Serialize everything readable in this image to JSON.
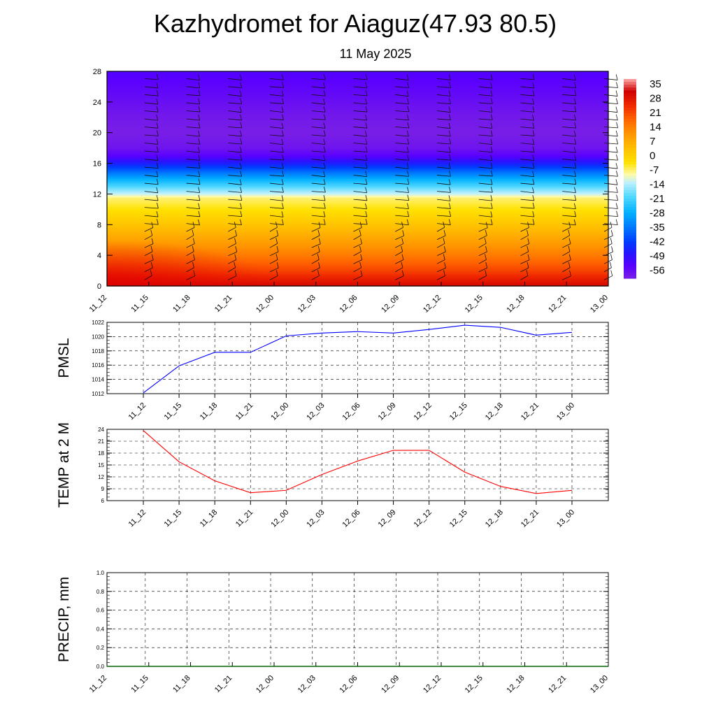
{
  "title": "Kazhydromet for Aiaguz(47.93 80.5)",
  "subtitle": "11 May 2025",
  "time_labels": [
    "11_12",
    "11_15",
    "11_18",
    "11_21",
    "12_00",
    "12_03",
    "12_06",
    "12_09",
    "12_12",
    "12_15",
    "12_18",
    "12_21",
    "13_00"
  ],
  "colorbar": {
    "labels": [
      "35",
      "28",
      "21",
      "14",
      "7",
      "0",
      "-7",
      "-14",
      "-21",
      "-28",
      "-35",
      "-42",
      "-49",
      "-56"
    ]
  },
  "chart_data": [
    {
      "type": "heatmap",
      "name": "cross-section",
      "xlabel": "",
      "ylabel": "",
      "y_ticks": [
        "0",
        "4",
        "8",
        "12",
        "16",
        "20",
        "24",
        "28"
      ],
      "ylim": [
        0,
        28
      ],
      "x_categories": [
        "11_12",
        "11_15",
        "11_18",
        "11_21",
        "12_00",
        "12_03",
        "12_06",
        "12_09",
        "12_12",
        "12_15",
        "12_18",
        "12_21",
        "13_00"
      ],
      "z_levels_km": [
        0,
        2,
        4,
        6,
        8,
        10,
        11.5,
        12,
        14,
        16,
        17,
        18,
        20,
        22,
        24,
        26,
        28
      ],
      "temperature_profile": [
        29,
        20,
        13,
        7,
        1,
        -5,
        -9,
        -14,
        -30,
        -48,
        -56,
        -60,
        -62,
        -61,
        -59,
        -57,
        -55
      ],
      "color_scale": "temperature",
      "wind_barbs": "shown"
    },
    {
      "type": "line",
      "ylabel": "PMSL",
      "categories": [
        "11_12",
        "11_15",
        "11_18",
        "11_21",
        "12_00",
        "12_03",
        "12_06",
        "12_09",
        "12_12",
        "12_15",
        "12_18",
        "12_21",
        "13_00"
      ],
      "y_ticks": [
        "1012",
        "1014",
        "1016",
        "1018",
        "1020",
        "1022"
      ],
      "ylim": [
        1012,
        1022
      ],
      "color": "#0000ff",
      "values": [
        1012.1,
        1015.9,
        1017.8,
        1017.8,
        1020.1,
        1020.5,
        1020.7,
        1020.5,
        1021.0,
        1021.6,
        1021.3,
        1020.2,
        1020.6
      ]
    },
    {
      "type": "line",
      "ylabel": "TEMP at 2 M",
      "categories": [
        "11_12",
        "11_15",
        "11_18",
        "11_21",
        "12_00",
        "12_03",
        "12_06",
        "12_09",
        "12_12",
        "12_15",
        "12_18",
        "12_21",
        "13_00"
      ],
      "y_ticks": [
        "6",
        "9",
        "12",
        "15",
        "18",
        "21",
        "24"
      ],
      "ylim": [
        6,
        24
      ],
      "color": "#ff0000",
      "values": [
        23.7,
        15.8,
        11.0,
        8.0,
        8.6,
        12.6,
        16.0,
        18.7,
        18.7,
        13.2,
        9.6,
        7.8,
        8.6
      ]
    },
    {
      "type": "line",
      "ylabel": "PRECIP, mm",
      "categories": [
        "11_12",
        "11_15",
        "11_18",
        "11_21",
        "12_00",
        "12_03",
        "12_06",
        "12_09",
        "12_12",
        "12_15",
        "12_18",
        "12_21",
        "13_00"
      ],
      "y_ticks": [
        "0.0",
        "0.2",
        "0.4",
        "0.6",
        "0.8",
        "1.0"
      ],
      "ylim": [
        0,
        1
      ],
      "color": "#006400",
      "values": [
        0,
        0,
        0,
        0,
        0,
        0,
        0,
        0,
        0,
        0,
        0,
        0,
        0
      ]
    }
  ]
}
